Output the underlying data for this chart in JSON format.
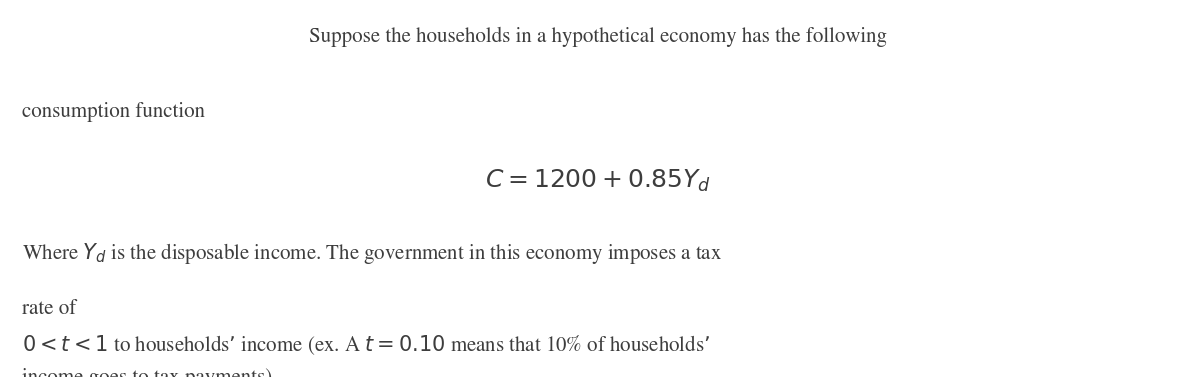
{
  "background_color": "#ffffff",
  "text_color": "#3d3d3d",
  "figsize": [
    11.96,
    3.77
  ],
  "dpi": 100,
  "line1": "Suppose the households in a hypothetical economy has the following",
  "line2": "consumption function",
  "formula": "$C = 1200 + 0.85Y_{d}$",
  "line3": "Where $Y_{d}$ is the disposable income. The government in this economy imposes a tax",
  "line4": "rate of",
  "line5": "$0 < t < 1$ to households’ income (ex. A $t = 0.10$ means that 10% of households’",
  "line6": "income goes to tax payments).",
  "font_size_body": 15.0,
  "font_size_formula": 18,
  "font_family": "STIXGeneral"
}
